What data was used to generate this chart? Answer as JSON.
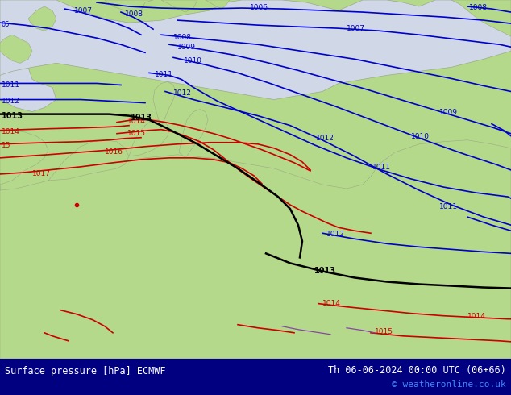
{
  "title_left": "Surface pressure [hPa] ECMWF",
  "title_right": "Th 06-06-2024 00:00 UTC (06+66)",
  "copyright": "© weatheronline.co.uk",
  "land_color": "#b5d98a",
  "sea_color": "#d0d8e8",
  "coast_color": "#9aaa88",
  "contour_blue": "#0000cc",
  "contour_red": "#cc0000",
  "contour_black": "#000000",
  "contour_purple": "#8844aa",
  "footer_bg": "#000080",
  "footer_text": "#ffffff",
  "copyright_color": "#4488ff"
}
